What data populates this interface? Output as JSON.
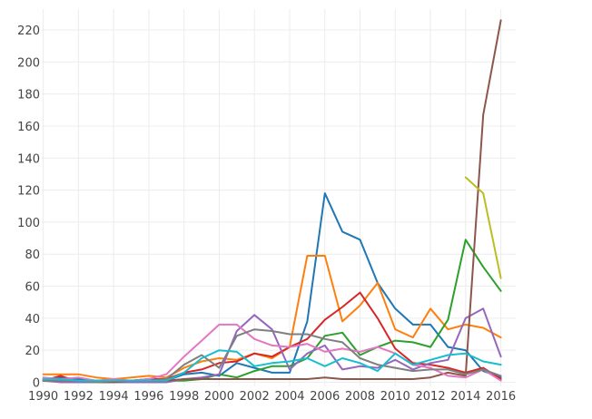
{
  "chart_data": {
    "type": "line",
    "title": "",
    "xlabel": "",
    "ylabel": "",
    "legend": "none",
    "grid": true,
    "x": [
      1990,
      1991,
      1992,
      1993,
      1994,
      1995,
      1996,
      1997,
      1998,
      1999,
      2000,
      2001,
      2002,
      2003,
      2004,
      2005,
      2006,
      2007,
      2008,
      2009,
      2010,
      2011,
      2012,
      2013,
      2014,
      2015,
      2016
    ],
    "x_tick_labels": [
      "1990",
      "1992",
      "1994",
      "1996",
      "1998",
      "2000",
      "2002",
      "2004",
      "2006",
      "2008",
      "2010",
      "2012",
      "2014",
      "2016"
    ],
    "y_ticks": [
      0,
      20,
      40,
      60,
      80,
      100,
      120,
      140,
      160,
      180,
      200,
      220
    ],
    "xlim": [
      1990,
      2016
    ],
    "ylim": [
      0,
      230
    ],
    "series": [
      {
        "name": "series-blue",
        "color": "#1f77b4",
        "values": [
          2,
          3,
          2,
          1,
          1,
          1,
          2,
          1,
          5,
          6,
          4,
          12,
          9,
          6,
          6,
          38,
          118,
          94,
          89,
          62,
          46,
          36,
          36,
          22,
          20,
          7,
          3
        ]
      },
      {
        "name": "series-orange",
        "color": "#ff7f0e",
        "values": [
          5,
          5,
          5,
          3,
          2,
          3,
          4,
          3,
          9,
          13,
          15,
          14,
          18,
          15,
          22,
          79,
          79,
          38,
          48,
          62,
          33,
          28,
          46,
          33,
          36,
          34,
          28
        ]
      },
      {
        "name": "series-green",
        "color": "#2ca02c",
        "values": [
          1,
          1,
          1,
          0,
          1,
          1,
          1,
          1,
          1,
          2,
          5,
          3,
          7,
          10,
          10,
          15,
          29,
          31,
          17,
          22,
          26,
          25,
          22,
          39,
          89,
          72,
          57
        ]
      },
      {
        "name": "series-red",
        "color": "#d62728",
        "values": [
          1,
          4,
          0,
          1,
          1,
          1,
          2,
          2,
          6,
          8,
          12,
          13,
          18,
          16,
          22,
          27,
          39,
          47,
          56,
          40,
          21,
          12,
          11,
          9,
          6,
          9,
          2
        ]
      },
      {
        "name": "series-purple",
        "color": "#9467bd",
        "values": [
          1,
          0,
          0,
          0,
          0,
          0,
          0,
          0,
          2,
          3,
          5,
          32,
          42,
          33,
          8,
          18,
          23,
          8,
          10,
          9,
          14,
          8,
          12,
          14,
          40,
          46,
          16
        ]
      },
      {
        "name": "series-brown",
        "color": "#8c564b",
        "values": [
          1,
          1,
          1,
          0,
          0,
          1,
          1,
          1,
          2,
          2,
          2,
          2,
          2,
          2,
          2,
          2,
          3,
          2,
          2,
          2,
          2,
          2,
          3,
          6,
          4,
          167,
          226
        ]
      },
      {
        "name": "series-pink",
        "color": "#e377c2",
        "values": [
          3,
          2,
          3,
          1,
          2,
          1,
          2,
          5,
          16,
          26,
          36,
          36,
          27,
          23,
          22,
          24,
          19,
          21,
          19,
          22,
          18,
          11,
          9,
          4,
          3,
          8,
          1
        ]
      },
      {
        "name": "series-gray",
        "color": "#7f7f7f",
        "values": [
          1,
          1,
          1,
          0,
          1,
          1,
          1,
          2,
          11,
          17,
          9,
          29,
          33,
          32,
          30,
          30,
          27,
          25,
          15,
          11,
          9,
          7,
          8,
          8,
          5,
          8,
          4
        ]
      },
      {
        "name": "series-olive",
        "color": "#bcbd22",
        "values": [
          null,
          null,
          null,
          null,
          null,
          null,
          null,
          null,
          null,
          null,
          null,
          null,
          null,
          null,
          null,
          null,
          null,
          null,
          null,
          null,
          null,
          null,
          null,
          null,
          128,
          118,
          65
        ]
      },
      {
        "name": "series-cyan",
        "color": "#17becf",
        "values": [
          2,
          2,
          1,
          1,
          1,
          1,
          1,
          1,
          6,
          15,
          20,
          19,
          10,
          12,
          13,
          15,
          10,
          15,
          12,
          7,
          18,
          11,
          14,
          17,
          18,
          13,
          11
        ]
      }
    ]
  },
  "colors": {
    "background": "#ffffff",
    "gridline": "#ececec",
    "tick_label": "#444444"
  }
}
